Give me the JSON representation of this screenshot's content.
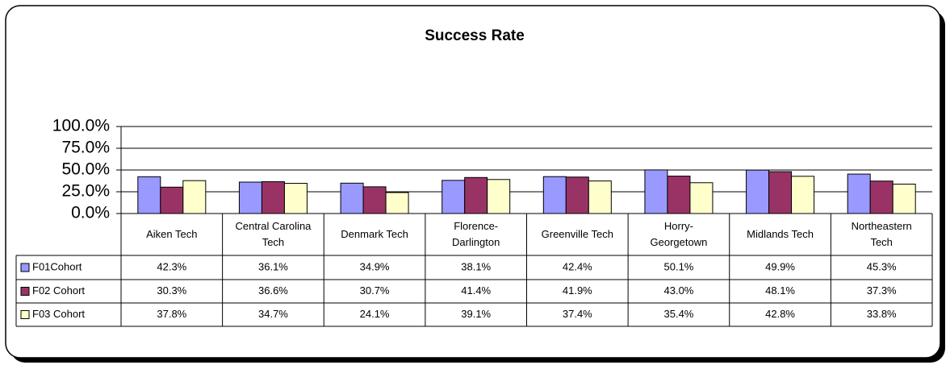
{
  "chart_data": {
    "type": "bar",
    "title": "Success Rate",
    "categories": [
      "Aiken Tech",
      "Central Carolina Tech",
      "Denmark Tech",
      "Florence-Darlington",
      "Greenville Tech",
      "Horry-Georgetown",
      "Midlands Tech",
      "Northeastern Tech"
    ],
    "series": [
      {
        "name": "F01Cohort",
        "color": "#9999ff",
        "values": [
          42.3,
          36.1,
          34.9,
          38.1,
          42.4,
          50.1,
          49.9,
          45.3
        ],
        "value_labels": [
          "42.3%",
          "36.1%",
          "34.9%",
          "38.1%",
          "42.4%",
          "50.1%",
          "49.9%",
          "45.3%"
        ]
      },
      {
        "name": "F02 Cohort",
        "color": "#993366",
        "values": [
          30.3,
          36.6,
          30.7,
          41.4,
          41.9,
          43.0,
          48.1,
          37.3
        ],
        "value_labels": [
          "30.3%",
          "36.6%",
          "30.7%",
          "41.4%",
          "41.9%",
          "43.0%",
          "48.1%",
          "37.3%"
        ]
      },
      {
        "name": "F03 Cohort",
        "color": "#ffffcc",
        "values": [
          37.8,
          34.7,
          24.1,
          39.1,
          37.4,
          35.4,
          42.8,
          33.8
        ],
        "value_labels": [
          "37.8%",
          "34.7%",
          "24.1%",
          "39.1%",
          "37.4%",
          "35.4%",
          "42.8%",
          "33.8%"
        ]
      }
    ],
    "ylim": [
      0,
      100
    ],
    "yticks": [
      {
        "value": 0,
        "label": "0.0%"
      },
      {
        "value": 25,
        "label": "25.0%"
      },
      {
        "value": 50,
        "label": "50.0%"
      },
      {
        "value": 75,
        "label": "75.0%"
      },
      {
        "value": 100,
        "label": "100.0%"
      }
    ],
    "grid": true
  }
}
